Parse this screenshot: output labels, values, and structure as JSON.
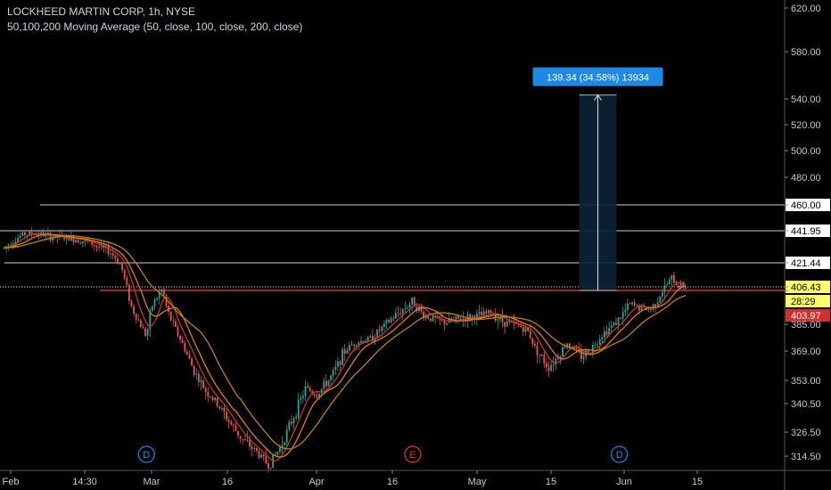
{
  "header": {
    "title": "LOCKHEED MARTIN CORP, 1h, NYSE",
    "indicator": "50,100,200 Moving Average (50, close, 100, close, 200, close)"
  },
  "colors": {
    "background": "#000000",
    "up_candle": "#26a69a",
    "down_candle": "#ef5350",
    "ma50": "#c0392b",
    "ma100": "#e07b2a",
    "ma200": "#b8860b",
    "support_line": "#d32f2f",
    "horizontal_lines": "#d0d0d0",
    "measure_fill": "#0b2236",
    "measure_label": "#1e88e5",
    "price_tag": "#ffff66"
  },
  "chart_data": {
    "type": "candlestick",
    "x_tick_labels": [
      "Feb",
      "14:30",
      "Mar",
      "16",
      "Apr",
      "16",
      "May",
      "15",
      "Jun",
      "15"
    ],
    "y_tick_labels": [
      "620.00",
      "580.00",
      "540.00",
      "520.00",
      "500.00",
      "480.00",
      "460.00",
      "441.95",
      "421.44",
      "406.43",
      "403.97",
      "385.00",
      "369.00",
      "353.00",
      "340.50",
      "326.50",
      "314.50"
    ],
    "horizontal_levels": [
      460.0,
      441.95,
      421.44,
      403.97
    ],
    "last_price": 406.43,
    "last_price_countdown": "28:29",
    "measurement": {
      "label": "139.34 (34.58%) 13934",
      "low": 403.97,
      "high": 543.31
    },
    "event_markers": [
      {
        "label": "D",
        "date": "Feb 28"
      },
      {
        "label": "E",
        "date": "Apr 19"
      },
      {
        "label": "D",
        "date": "May 31"
      }
    ],
    "moving_averages": [
      "50",
      "100",
      "200"
    ],
    "candles_close_path": [
      [
        "Jan 31",
        431
      ],
      [
        "Feb 2",
        436
      ],
      [
        "Feb 4",
        440
      ],
      [
        "Feb 7",
        440
      ],
      [
        "Feb 9",
        438
      ],
      [
        "Feb 11",
        438
      ],
      [
        "Feb 15",
        436
      ],
      [
        "Feb 17",
        434
      ],
      [
        "Feb 21",
        428
      ],
      [
        "Feb 23",
        420
      ],
      [
        "Feb 24",
        408
      ],
      [
        "Feb 25",
        395
      ],
      [
        "Feb 28",
        378
      ],
      [
        "Mar 1",
        395
      ],
      [
        "Mar 3",
        405
      ],
      [
        "Mar 4",
        392
      ],
      [
        "Mar 7",
        372
      ],
      [
        "Mar 9",
        358
      ],
      [
        "Mar 11",
        348
      ],
      [
        "Mar 14",
        338
      ],
      [
        "Mar 16",
        330
      ],
      [
        "Mar 18",
        323
      ],
      [
        "Mar 21",
        316
      ],
      [
        "Mar 23",
        310
      ],
      [
        "Mar 25",
        318
      ],
      [
        "Mar 28",
        336
      ],
      [
        "Mar 30",
        349
      ],
      [
        "Apr 1",
        345
      ],
      [
        "Apr 4",
        356
      ],
      [
        "Apr 6",
        368
      ],
      [
        "Apr 8",
        374
      ],
      [
        "Apr 11",
        376
      ],
      [
        "Apr 13",
        382
      ],
      [
        "Apr 15",
        388
      ],
      [
        "Apr 19",
        398
      ],
      [
        "Apr 21",
        390
      ],
      [
        "Apr 25",
        386
      ],
      [
        "Apr 28",
        388
      ],
      [
        "May 2",
        390
      ],
      [
        "May 4",
        392
      ],
      [
        "May 6",
        387
      ],
      [
        "May 10",
        384
      ],
      [
        "May 12",
        380
      ],
      [
        "May 13",
        372
      ],
      [
        "May 16",
        360
      ],
      [
        "May 18",
        366
      ],
      [
        "May 20",
        374
      ],
      [
        "May 23",
        366
      ],
      [
        "May 25",
        370
      ],
      [
        "May 27",
        378
      ],
      [
        "May 31",
        388
      ],
      [
        "Jun 2",
        396
      ],
      [
        "Jun 6",
        393
      ],
      [
        "Jun 8",
        402
      ],
      [
        "Jun 10",
        412
      ],
      [
        "Jun 11",
        408
      ],
      [
        "Jun 13",
        406.43
      ]
    ]
  }
}
